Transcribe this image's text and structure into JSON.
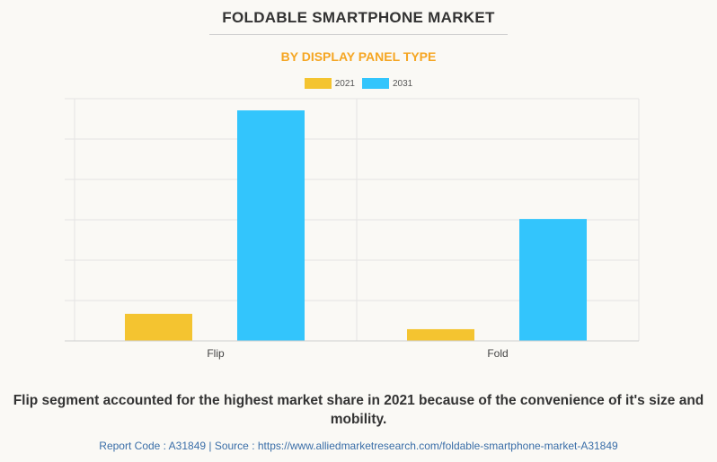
{
  "chart_data": {
    "type": "bar",
    "title": "FOLDABLE SMARTPHONE MARKET",
    "subtitle": "BY DISPLAY PANEL TYPE",
    "categories": [
      "Flip",
      "Fold"
    ],
    "series": [
      {
        "name": "2021",
        "color": "#f4c430",
        "values": [
          0.67,
          0.29
        ]
      },
      {
        "name": "2031",
        "color": "#33c5fc",
        "values": [
          5.71,
          3.02
        ]
      }
    ],
    "xlabel": "",
    "ylabel": "",
    "ylim": [
      0,
      6
    ],
    "y_ticks_labeled": false,
    "grid": true,
    "legend": "top-center"
  },
  "caption": "Flip segment accounted for the highest market share in 2021 because of the convenience of it's size and mobility.",
  "source": "Report Code : A31849  |  Source : https://www.alliedmarketresearch.com/foldable-smartphone-market-A31849"
}
